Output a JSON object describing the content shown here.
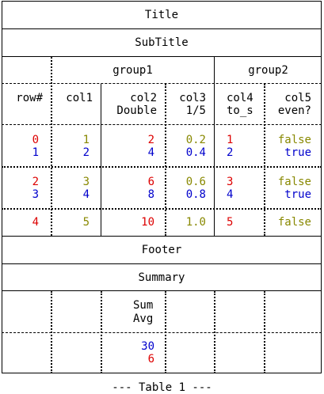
{
  "title": "Title",
  "subtitle": "SubTitle",
  "groups": {
    "group1": "group1",
    "group2": "group2"
  },
  "headers": {
    "rownum": "row#",
    "col1": "col1",
    "col2_l1": "col2",
    "col2_l2": "Double",
    "col3_l1": "col3",
    "col3_l2": "1/5",
    "col4_l1": "col4",
    "col4_l2": "to_s",
    "col5_l1": "col5",
    "col5_l2": "even?"
  },
  "rows": [
    {
      "rownum": "0",
      "col1": "1",
      "col2": "2",
      "col3": "0.2",
      "col4": "1",
      "col5": "false"
    },
    {
      "rownum": "1",
      "col1": "2",
      "col2": "4",
      "col3": "0.4",
      "col4": "2",
      "col5": "true"
    },
    {
      "rownum": "2",
      "col1": "3",
      "col2": "6",
      "col3": "0.6",
      "col4": "3",
      "col5": "false"
    },
    {
      "rownum": "3",
      "col1": "4",
      "col2": "8",
      "col3": "0.8",
      "col4": "4",
      "col5": "true"
    },
    {
      "rownum": "4",
      "col1": "5",
      "col2": "10",
      "col3": "1.0",
      "col4": "5",
      "col5": "false"
    }
  ],
  "footer": "Footer",
  "summary": {
    "title": "Summary",
    "label_sum": "Sum",
    "label_avg": "Avg",
    "sum_value": "30",
    "avg_value": "6"
  },
  "caption": "--- Table 1 ---",
  "colors": {
    "red": "#dd0000",
    "blue": "#0000cc",
    "olive": "#888800"
  }
}
